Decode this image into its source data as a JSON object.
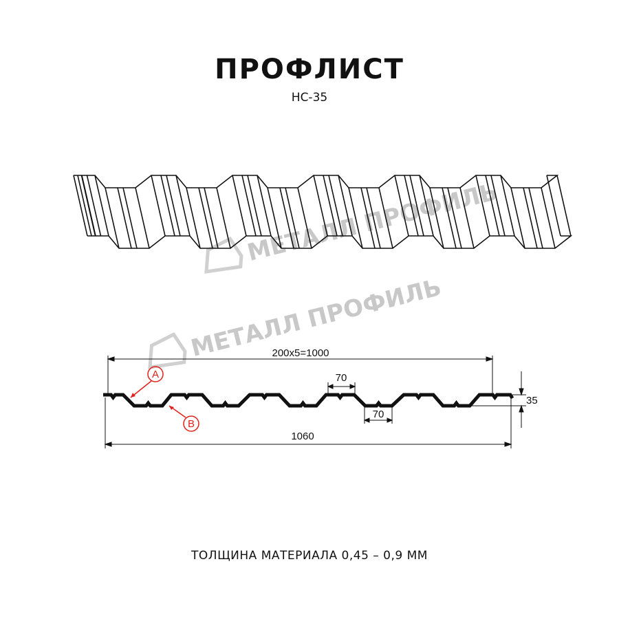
{
  "header": {
    "title": "ПРОФЛИСТ",
    "subtitle": "НС-35"
  },
  "watermark": {
    "logo_text": "МЕТАЛЛ ПРОФИЛЬ",
    "color": "#c8c8c8"
  },
  "section": {
    "pitch_dimension": "200x5=1000",
    "top_flange_dimension": "70",
    "bottom_flange_dimension": "70",
    "height_dimension": "35",
    "total_width_dimension": "1060",
    "label_a": "A",
    "label_b": "B",
    "label_color": "#e0201b"
  },
  "footer": {
    "thickness_text": "ТОЛЩИНА МАТЕРИАЛА 0,45 – 0,9 ММ"
  }
}
